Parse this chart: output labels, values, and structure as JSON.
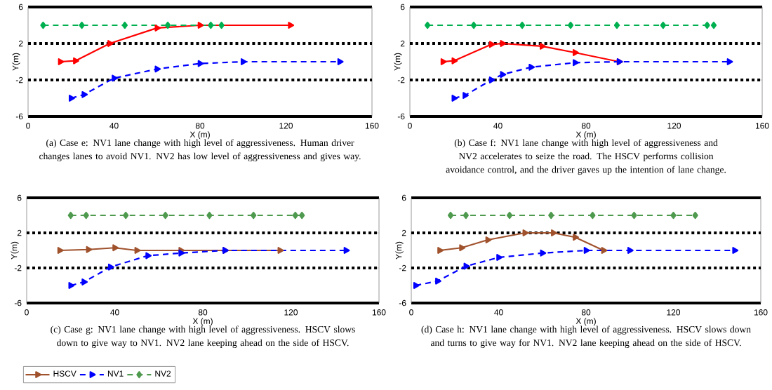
{
  "chart_data": [
    {
      "type": "line",
      "xlabel": "X (m)",
      "ylabel": "Y(m)",
      "xlim": [
        0,
        160
      ],
      "ylim": [
        -6,
        6
      ],
      "xticks": [
        0,
        40,
        80,
        120,
        160
      ],
      "yticks": [
        -6,
        -2,
        2,
        6
      ],
      "legend": false,
      "ref_lines": [
        {
          "axis": "y",
          "value": 2,
          "color": "#000000",
          "line_style": "dotted"
        },
        {
          "axis": "y",
          "value": -2,
          "color": "#000000",
          "line_style": "dotted"
        }
      ],
      "annotations": [
        "(a)  Case e: NV1 lane change with high level of aggressiveness. Human driver changes lanes to avoid NV1. NV2 has low level of aggressiveness and gives way."
      ],
      "series": [
        {
          "color": "#ff0000",
          "marker": "triangle",
          "line_style": "solid",
          "x": [
            15,
            22,
            38,
            60,
            80,
            122
          ],
          "values": [
            0,
            0.1,
            2,
            3.7,
            4,
            4
          ]
        },
        {
          "color": "#0000ff",
          "marker": "triangle",
          "line_style": "dashed",
          "x": [
            20,
            26,
            40,
            60,
            80,
            100,
            145
          ],
          "values": [
            -4,
            -3.6,
            -1.8,
            -0.8,
            -0.2,
            0,
            0
          ]
        },
        {
          "color": "#00b050",
          "marker": "diamond",
          "line_style": "dashed",
          "x": [
            7,
            25,
            45,
            65,
            85,
            90
          ],
          "values": [
            4,
            4,
            4,
            4,
            4,
            4
          ]
        }
      ]
    },
    {
      "type": "line",
      "xlabel": "X (m)",
      "ylabel": "Y(m)",
      "xlim": [
        0,
        160
      ],
      "ylim": [
        -6,
        6
      ],
      "xticks": [
        0,
        40,
        80,
        120,
        160
      ],
      "yticks": [
        -6,
        -2,
        2,
        6
      ],
      "legend": false,
      "ref_lines": [
        {
          "axis": "y",
          "value": 2,
          "color": "#000000",
          "line_style": "dotted"
        },
        {
          "axis": "y",
          "value": -2,
          "color": "#000000",
          "line_style": "dotted"
        }
      ],
      "annotations": [
        "(b)  Case f: NV1 lane change with high level of aggressiveness and NV2 accelerates to seize the road. The HSCV performs collision avoidance control, and the driver gaves up the intention of lane change."
      ],
      "series": [
        {
          "color": "#ff0000",
          "marker": "triangle",
          "line_style": "solid",
          "x": [
            15,
            20,
            37,
            42,
            60,
            75,
            95
          ],
          "values": [
            0,
            0.1,
            1.9,
            2,
            1.7,
            1,
            0
          ]
        },
        {
          "color": "#0000ff",
          "marker": "triangle",
          "line_style": "dashed",
          "x": [
            20,
            25,
            37,
            42,
            55,
            75,
            95,
            145
          ],
          "values": [
            -4,
            -3.7,
            -2,
            -1.4,
            -0.6,
            -0.1,
            0,
            0
          ]
        },
        {
          "color": "#00b050",
          "marker": "diamond",
          "line_style": "dashed",
          "x": [
            8,
            29,
            51,
            73,
            94,
            115,
            135,
            138
          ],
          "values": [
            4,
            4,
            4,
            4,
            4,
            4,
            4,
            4
          ]
        }
      ]
    },
    {
      "type": "line",
      "xlabel": "X (m)",
      "ylabel": "Y(m)",
      "xlim": [
        0,
        160
      ],
      "ylim": [
        -6,
        6
      ],
      "xticks": [
        0,
        40,
        80,
        120,
        160
      ],
      "yticks": [
        -6,
        -2,
        2,
        6
      ],
      "legend": "bottom left",
      "ref_lines": [
        {
          "axis": "y",
          "value": 2,
          "color": "#000000",
          "line_style": "dotted"
        },
        {
          "axis": "y",
          "value": -2,
          "color": "#000000",
          "line_style": "dotted"
        }
      ],
      "annotations": [
        "(c)  Case g: NV1 lane change with high level of aggressiveness. HSCV slows down to give way to NV1. NV2 lane keeping ahead on the side of HSCV."
      ],
      "series": [
        {
          "name": "HSCV",
          "color": "#a0522d",
          "marker": "triangle",
          "line_style": "solid",
          "x": [
            15,
            28,
            40,
            50,
            70,
            90,
            115
          ],
          "values": [
            0,
            0.1,
            0.3,
            0,
            0,
            0,
            0
          ]
        },
        {
          "name": "NV1",
          "color": "#0000ff",
          "marker": "triangle",
          "line_style": "dashed",
          "x": [
            20,
            26,
            38,
            55,
            70,
            90,
            145
          ],
          "values": [
            -4,
            -3.6,
            -1.9,
            -0.6,
            -0.3,
            0,
            0
          ]
        },
        {
          "name": "NV2",
          "color": "#4f9a4f",
          "marker": "diamond",
          "line_style": "dashed",
          "x": [
            20,
            27,
            45,
            63,
            83,
            103,
            122,
            125
          ],
          "values": [
            4,
            4,
            4,
            4,
            4,
            4,
            4,
            4
          ]
        }
      ]
    },
    {
      "type": "line",
      "xlabel": "X (m)",
      "ylabel": "Y(m)",
      "xlim": [
        0,
        160
      ],
      "ylim": [
        -6,
        6
      ],
      "xticks": [
        0,
        40,
        80,
        120,
        160
      ],
      "yticks": [
        -6,
        -2,
        2,
        6
      ],
      "legend": false,
      "ref_lines": [
        {
          "axis": "y",
          "value": 2,
          "color": "#000000",
          "line_style": "dotted"
        },
        {
          "axis": "y",
          "value": -2,
          "color": "#000000",
          "line_style": "dotted"
        }
      ],
      "annotations": [
        "(d)  Case h: NV1 lane change with high level of aggressiveness. HSCV slows down and turns to give way for NV1. NV2 lane keeping ahead on the side of HSCV."
      ],
      "series": [
        {
          "color": "#a0522d",
          "marker": "triangle",
          "line_style": "solid",
          "x": [
            13,
            23,
            35,
            52,
            65,
            75,
            88
          ],
          "values": [
            0,
            0.3,
            1.2,
            2,
            2,
            1.5,
            0
          ]
        },
        {
          "color": "#0000ff",
          "marker": "triangle",
          "line_style": "dashed",
          "x": [
            2,
            12,
            25,
            40,
            60,
            80,
            100,
            148
          ],
          "values": [
            -4,
            -3.5,
            -1.8,
            -0.8,
            -0.3,
            0,
            0,
            0
          ]
        },
        {
          "color": "#4f9a4f",
          "marker": "diamond",
          "line_style": "dashed",
          "x": [
            18,
            25,
            45,
            64,
            83,
            102,
            120,
            130
          ],
          "values": [
            4,
            4,
            4,
            4,
            4,
            4,
            4,
            4
          ]
        }
      ]
    }
  ]
}
